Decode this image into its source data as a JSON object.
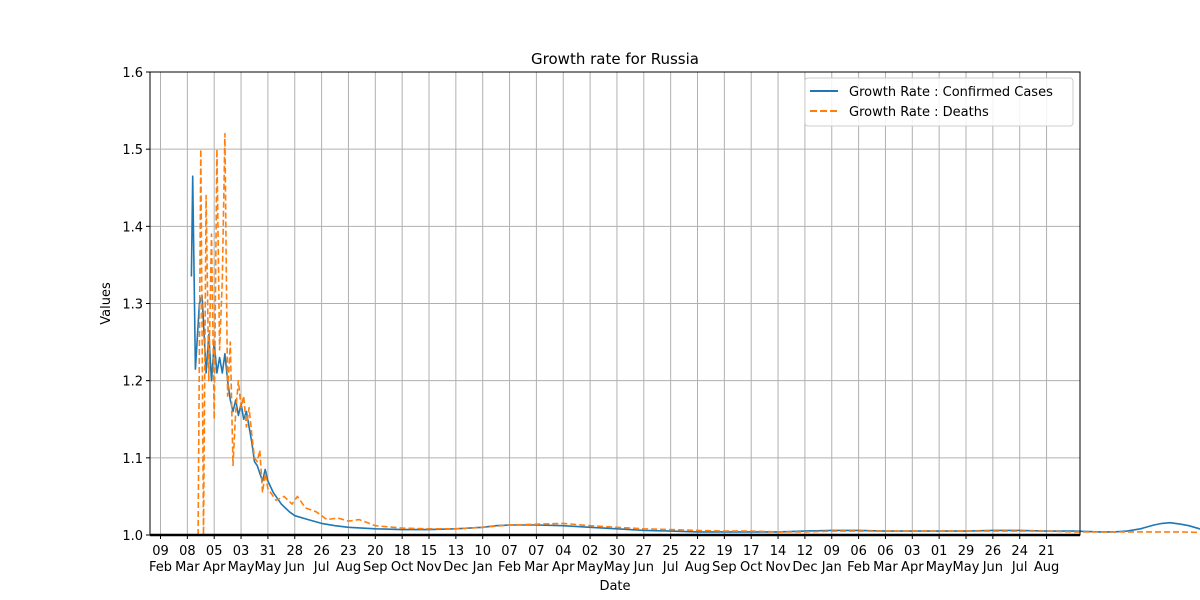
{
  "chart_data": {
    "type": "line",
    "title": "Growth rate for Russia",
    "xlabel": "Date",
    "ylabel": "Values",
    "ylim": [
      1.0,
      1.6
    ],
    "yticks": [
      "1.0",
      "1.1",
      "1.2",
      "1.3",
      "1.4",
      "1.5",
      "1.6"
    ],
    "grid": true,
    "legend_position": "top-right",
    "xticks": [
      {
        "day": "09",
        "month": "Feb"
      },
      {
        "day": "08",
        "month": "Mar"
      },
      {
        "day": "05",
        "month": "Apr"
      },
      {
        "day": "03",
        "month": "May"
      },
      {
        "day": "31",
        "month": "May"
      },
      {
        "day": "28",
        "month": "Jun"
      },
      {
        "day": "26",
        "month": "Jul"
      },
      {
        "day": "23",
        "month": "Aug"
      },
      {
        "day": "20",
        "month": "Sep"
      },
      {
        "day": "18",
        "month": "Oct"
      },
      {
        "day": "15",
        "month": "Nov"
      },
      {
        "day": "13",
        "month": "Dec"
      },
      {
        "day": "10",
        "month": "Jan"
      },
      {
        "day": "07",
        "month": "Feb"
      },
      {
        "day": "07",
        "month": "Mar"
      },
      {
        "day": "04",
        "month": "Apr"
      },
      {
        "day": "02",
        "month": "May"
      },
      {
        "day": "30",
        "month": "May"
      },
      {
        "day": "27",
        "month": "Jun"
      },
      {
        "day": "25",
        "month": "Jul"
      },
      {
        "day": "22",
        "month": "Aug"
      },
      {
        "day": "19",
        "month": "Sep"
      },
      {
        "day": "17",
        "month": "Oct"
      },
      {
        "day": "14",
        "month": "Nov"
      },
      {
        "day": "12",
        "month": "Dec"
      },
      {
        "day": "09",
        "month": "Jan"
      },
      {
        "day": "06",
        "month": "Feb"
      },
      {
        "day": "06",
        "month": "Mar"
      },
      {
        "day": "03",
        "month": "Apr"
      },
      {
        "day": "01",
        "month": "May"
      },
      {
        "day": "29",
        "month": "May"
      },
      {
        "day": "26",
        "month": "Jun"
      },
      {
        "day": "24",
        "month": "Jul"
      },
      {
        "day": "21",
        "month": "Aug"
      }
    ],
    "series": [
      {
        "name": "Growth Rate : Confirmed Cases",
        "color": "#1f77b4",
        "style": "solid",
        "points": [
          [
            1.15,
            1.335
          ],
          [
            1.2,
            1.465
          ],
          [
            1.3,
            1.215
          ],
          [
            1.45,
            1.3
          ],
          [
            1.55,
            1.31
          ],
          [
            1.7,
            1.21
          ],
          [
            1.8,
            1.26
          ],
          [
            1.9,
            1.2
          ],
          [
            2.0,
            1.25
          ],
          [
            2.1,
            1.21
          ],
          [
            2.2,
            1.23
          ],
          [
            2.3,
            1.21
          ],
          [
            2.4,
            1.235
          ],
          [
            2.5,
            1.2
          ],
          [
            2.6,
            1.175
          ],
          [
            2.7,
            1.16
          ],
          [
            2.8,
            1.175
          ],
          [
            2.9,
            1.155
          ],
          [
            3.0,
            1.17
          ],
          [
            3.1,
            1.15
          ],
          [
            3.2,
            1.16
          ],
          [
            3.3,
            1.14
          ],
          [
            3.4,
            1.12
          ],
          [
            3.5,
            1.095
          ],
          [
            3.6,
            1.09
          ],
          [
            3.7,
            1.08
          ],
          [
            3.8,
            1.07
          ],
          [
            3.9,
            1.085
          ],
          [
            4.0,
            1.07
          ],
          [
            4.2,
            1.055
          ],
          [
            4.5,
            1.04
          ],
          [
            4.8,
            1.03
          ],
          [
            5.0,
            1.025
          ],
          [
            5.5,
            1.02
          ],
          [
            6.0,
            1.015
          ],
          [
            6.5,
            1.012
          ],
          [
            7.0,
            1.01
          ],
          [
            8.0,
            1.008
          ],
          [
            9.0,
            1.007
          ],
          [
            10.0,
            1.007
          ],
          [
            11.0,
            1.008
          ],
          [
            12.0,
            1.01
          ],
          [
            12.5,
            1.012
          ],
          [
            13.0,
            1.013
          ],
          [
            14.0,
            1.013
          ],
          [
            15.0,
            1.012
          ],
          [
            16.0,
            1.01
          ],
          [
            17.0,
            1.008
          ],
          [
            18.0,
            1.006
          ],
          [
            19.0,
            1.005
          ],
          [
            20.0,
            1.004
          ],
          [
            21.0,
            1.004
          ],
          [
            22.0,
            1.004
          ],
          [
            23.0,
            1.004
          ],
          [
            24.0,
            1.005
          ],
          [
            25.0,
            1.006
          ],
          [
            26.0,
            1.006
          ],
          [
            27.0,
            1.005
          ],
          [
            28.0,
            1.005
          ],
          [
            29.0,
            1.005
          ],
          [
            30.0,
            1.005
          ],
          [
            31.0,
            1.006
          ],
          [
            32.0,
            1.006
          ],
          [
            33.0,
            1.005
          ],
          [
            34.0,
            1.005
          ],
          [
            35.0,
            1.004
          ],
          [
            35.5,
            1.004
          ],
          [
            36.0,
            1.005
          ],
          [
            36.5,
            1.008
          ],
          [
            37.0,
            1.013
          ],
          [
            37.3,
            1.015
          ],
          [
            37.6,
            1.016
          ],
          [
            38.0,
            1.014
          ],
          [
            38.3,
            1.012
          ],
          [
            38.7,
            1.008
          ],
          [
            39.2,
            1.005
          ],
          [
            39.8,
            1.003
          ],
          [
            40.5,
            1.002
          ],
          [
            41.5,
            1.002
          ],
          [
            42.5,
            1.0015
          ],
          [
            43.5,
            1.0012
          ],
          [
            44.5,
            1.001
          ],
          [
            45.5,
            1.001
          ],
          [
            46.3,
            1.001
          ]
        ]
      },
      {
        "name": "Growth Rate : Deaths",
        "color": "#ff7f0e",
        "style": "dashed",
        "points": [
          [
            1.4,
            1.0
          ],
          [
            1.5,
            1.5
          ],
          [
            1.6,
            1.0
          ],
          [
            1.7,
            1.44
          ],
          [
            1.8,
            1.2
          ],
          [
            1.9,
            1.39
          ],
          [
            2.0,
            1.15
          ],
          [
            2.1,
            1.5
          ],
          [
            2.2,
            1.24
          ],
          [
            2.3,
            1.33
          ],
          [
            2.4,
            1.52
          ],
          [
            2.5,
            1.18
          ],
          [
            2.6,
            1.25
          ],
          [
            2.7,
            1.09
          ],
          [
            2.8,
            1.16
          ],
          [
            2.9,
            1.2
          ],
          [
            3.0,
            1.165
          ],
          [
            3.1,
            1.18
          ],
          [
            3.2,
            1.14
          ],
          [
            3.3,
            1.165
          ],
          [
            3.4,
            1.13
          ],
          [
            3.5,
            1.1
          ],
          [
            3.6,
            1.095
          ],
          [
            3.7,
            1.11
          ],
          [
            3.8,
            1.055
          ],
          [
            3.9,
            1.08
          ],
          [
            4.0,
            1.06
          ],
          [
            4.3,
            1.045
          ],
          [
            4.6,
            1.05
          ],
          [
            4.9,
            1.04
          ],
          [
            5.1,
            1.05
          ],
          [
            5.4,
            1.035
          ],
          [
            5.8,
            1.03
          ],
          [
            6.2,
            1.02
          ],
          [
            6.6,
            1.022
          ],
          [
            7.0,
            1.018
          ],
          [
            7.4,
            1.02
          ],
          [
            8.0,
            1.012
          ],
          [
            9.0,
            1.009
          ],
          [
            10.0,
            1.008
          ],
          [
            11.0,
            1.008
          ],
          [
            12.0,
            1.01
          ],
          [
            13.0,
            1.013
          ],
          [
            14.0,
            1.014
          ],
          [
            15.0,
            1.015
          ],
          [
            16.0,
            1.012
          ],
          [
            17.0,
            1.01
          ],
          [
            18.0,
            1.008
          ],
          [
            19.0,
            1.007
          ],
          [
            20.0,
            1.006
          ],
          [
            21.0,
            1.005
          ],
          [
            22.0,
            1.005
          ],
          [
            23.0,
            1.004
          ],
          [
            24.0,
            1.004
          ],
          [
            25.0,
            1.005
          ],
          [
            26.0,
            1.005
          ],
          [
            27.0,
            1.005
          ],
          [
            28.0,
            1.005
          ],
          [
            29.0,
            1.005
          ],
          [
            30.0,
            1.005
          ],
          [
            31.0,
            1.005
          ],
          [
            32.0,
            1.005
          ],
          [
            33.0,
            1.005
          ],
          [
            34.0,
            1.004
          ],
          [
            35.0,
            1.004
          ],
          [
            36.0,
            1.004
          ],
          [
            37.0,
            1.004
          ],
          [
            38.0,
            1.004
          ],
          [
            39.0,
            1.003
          ],
          [
            40.0,
            1.003
          ],
          [
            41.0,
            1.002
          ],
          [
            42.0,
            1.002
          ],
          [
            43.0,
            1.002
          ],
          [
            44.0,
            1.002
          ],
          [
            45.0,
            1.001
          ],
          [
            46.3,
            1.001
          ]
        ]
      }
    ]
  }
}
